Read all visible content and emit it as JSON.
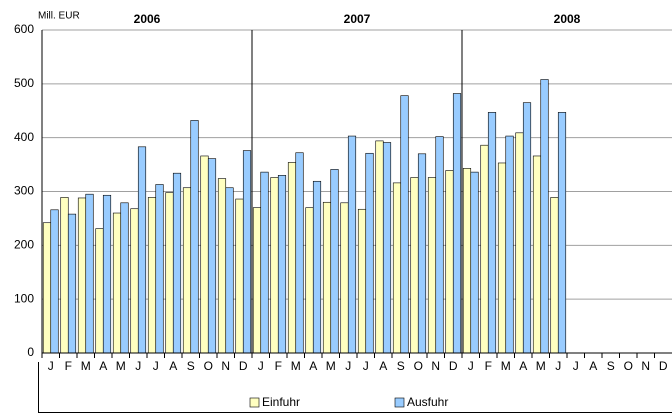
{
  "chart_data": {
    "type": "bar",
    "y_label": "Mill. EUR",
    "year_labels": [
      "2006",
      "2007",
      "2008"
    ],
    "categories": [
      "J",
      "F",
      "M",
      "A",
      "M",
      "J",
      "J",
      "A",
      "S",
      "O",
      "N",
      "D",
      "J",
      "F",
      "M",
      "A",
      "M",
      "J",
      "J",
      "A",
      "S",
      "O",
      "N",
      "D",
      "J",
      "F",
      "M",
      "A",
      "M",
      "J",
      "J",
      "A",
      "S",
      "O",
      "N",
      "D"
    ],
    "series": [
      {
        "name": "Einfuhr",
        "color": "#ffffc0",
        "values": [
          242,
          289,
          288,
          231,
          260,
          268,
          289,
          298,
          307,
          366,
          324,
          286,
          270,
          326,
          354,
          270,
          280,
          279,
          267,
          394,
          316,
          326,
          326,
          339,
          343,
          386,
          353,
          409,
          366,
          289,
          null,
          null,
          null,
          null,
          null,
          null
        ]
      },
      {
        "name": "Ausfuhr",
        "color": "#99ccff",
        "values": [
          266,
          258,
          295,
          293,
          279,
          383,
          313,
          334,
          432,
          361,
          307,
          376,
          336,
          330,
          372,
          319,
          341,
          403,
          371,
          391,
          478,
          370,
          402,
          482,
          336,
          447,
          403,
          465,
          508,
          447,
          null,
          null,
          null,
          null,
          null,
          null
        ]
      }
    ],
    "ylim": [
      0,
      600
    ],
    "yticks": [
      0,
      100,
      200,
      300,
      400,
      500,
      600
    ],
    "grid": true
  }
}
